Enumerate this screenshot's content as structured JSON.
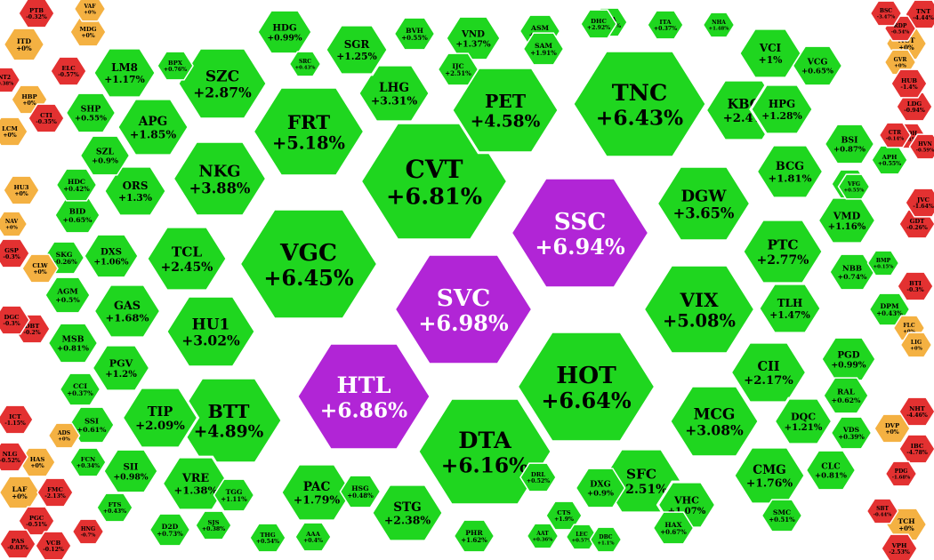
{
  "colors": {
    "up_strong": "#1fd61f",
    "up_medium": "#2ee02e",
    "ceiling": "#b125d6",
    "reference": "#f4b142",
    "down": "#e33131",
    "border": "#ffffff"
  },
  "tiles": [
    {
      "t": "SVC",
      "p": "+6.98%",
      "c": "ceiling"
    },
    {
      "t": "SSC",
      "p": "+6.94%",
      "c": "ceiling"
    },
    {
      "t": "HTL",
      "p": "+6.86%",
      "c": "ceiling"
    },
    {
      "t": "CVT",
      "p": "+6.81%",
      "c": "up"
    },
    {
      "t": "HOT",
      "p": "+6.64%",
      "c": "up"
    },
    {
      "t": "VGC",
      "p": "+6.45%",
      "c": "up"
    },
    {
      "t": "TNC",
      "p": "+6.43%",
      "c": "up"
    },
    {
      "t": "DTA",
      "p": "+6.16%",
      "c": "up"
    },
    {
      "t": "FRT",
      "p": "+5.18%",
      "c": "up"
    },
    {
      "t": "VIX",
      "p": "+5.08%",
      "c": "up"
    },
    {
      "t": "BTT",
      "p": "+4.89%",
      "c": "up"
    },
    {
      "t": "PET",
      "p": "+4.58%",
      "c": "up"
    },
    {
      "t": "NKG",
      "p": "+3.88%",
      "c": "up"
    },
    {
      "t": "DGW",
      "p": "+3.65%",
      "c": "up"
    },
    {
      "t": "LHG",
      "p": "+3.31%",
      "c": "up"
    },
    {
      "t": "MCG",
      "p": "+3.08%",
      "c": "up"
    },
    {
      "t": "HU1",
      "p": "+3.02%",
      "c": "up"
    },
    {
      "t": "SZC",
      "p": "+2.87%",
      "c": "up"
    },
    {
      "t": "PTC",
      "p": "+2.77%",
      "c": "up"
    },
    {
      "t": "SFC",
      "p": "+2.51%",
      "c": "up"
    },
    {
      "t": "TCL",
      "p": "+2.45%",
      "c": "up"
    },
    {
      "t": "KBC",
      "p": "+2.4%",
      "c": "up"
    },
    {
      "t": "STG",
      "p": "+2.38%",
      "c": "up"
    },
    {
      "t": "CII",
      "p": "+2.17%",
      "c": "up"
    },
    {
      "t": "TIP",
      "p": "+2.09%",
      "c": "up"
    },
    {
      "t": "APG",
      "p": "+1.85%",
      "c": "up"
    },
    {
      "t": "BCG",
      "p": "+1.81%",
      "c": "up"
    },
    {
      "t": "PAC",
      "p": "+1.79%",
      "c": "up"
    },
    {
      "t": "CMG",
      "p": "+1.76%",
      "c": "up"
    },
    {
      "t": "GAS",
      "p": "+1.68%",
      "c": "up"
    },
    {
      "t": "TLH",
      "p": "+1.47%",
      "c": "up"
    },
    {
      "t": "VRE",
      "p": "+1.38%",
      "c": "up"
    },
    {
      "t": "VND",
      "p": "+1.37%",
      "c": "up"
    },
    {
      "t": "ORS",
      "p": "+1.3%",
      "c": "up"
    },
    {
      "t": "HPG",
      "p": "+1.28%",
      "c": "up"
    },
    {
      "t": "SGR",
      "p": "+1.25%",
      "c": "up"
    },
    {
      "t": "PGV",
      "p": "+1.2%",
      "c": "up"
    },
    {
      "t": "DQC",
      "p": "+1.21%",
      "c": "up"
    },
    {
      "t": "LM8",
      "p": "+1.17%",
      "c": "up"
    },
    {
      "t": "VMD",
      "p": "+1.16%",
      "c": "up"
    },
    {
      "t": "VHC",
      "p": "+1.07%",
      "c": "up"
    },
    {
      "t": "DXS",
      "p": "+1.06%",
      "c": "up"
    },
    {
      "t": "VCI",
      "p": "+1%",
      "c": "up"
    },
    {
      "t": "HDG",
      "p": "+0.99%",
      "c": "up"
    },
    {
      "t": "PGD",
      "p": "+0.99%",
      "c": "up"
    },
    {
      "t": "SII",
      "p": "+0.98%",
      "c": "up"
    },
    {
      "t": "DXG",
      "p": "+0.9%",
      "c": "up"
    },
    {
      "t": "SZL",
      "p": "+0.9%",
      "c": "up"
    },
    {
      "t": "BSI",
      "p": "+0.87%",
      "c": "up"
    },
    {
      "t": "MSB",
      "p": "+0.81%",
      "c": "up"
    },
    {
      "t": "CLC",
      "p": "+0.81%",
      "c": "up"
    },
    {
      "t": "NBB",
      "p": "+0.74%",
      "c": "up"
    },
    {
      "t": "VCG",
      "p": "+0.65%",
      "c": "up"
    },
    {
      "t": "BID",
      "p": "+0.65%",
      "c": "up"
    },
    {
      "t": "RAL",
      "p": "+0.62%",
      "c": "up"
    },
    {
      "t": "SSI",
      "p": "+0.61%",
      "c": "up"
    },
    {
      "t": "SHP",
      "p": "+0.55%",
      "c": "up"
    },
    {
      "t": "AGM",
      "p": "+0.5%",
      "c": "up"
    },
    {
      "t": "HDC",
      "p": "+0.42%",
      "c": "up"
    },
    {
      "t": "DPM",
      "p": "+0.43%",
      "c": "up"
    },
    {
      "t": "VDS",
      "p": "+0.39%",
      "c": "up"
    },
    {
      "t": "CCI",
      "p": "+0.37%",
      "c": "up"
    },
    {
      "t": "SKG",
      "p": "+0.26%",
      "c": "up"
    },
    {
      "t": "GTA",
      "p": "+1.18%",
      "c": "up"
    },
    {
      "t": "BVH",
      "p": "+0.55%",
      "c": "up"
    },
    {
      "t": "ASM",
      "p": "+0.6%",
      "c": "up"
    },
    {
      "t": "IJC",
      "p": "+2.51%",
      "c": "up"
    },
    {
      "t": "SAM",
      "p": "+1.91%",
      "c": "up"
    },
    {
      "t": "ITA",
      "p": "+0.37%",
      "c": "up"
    },
    {
      "t": "SMC",
      "p": "+0.51%",
      "c": "up"
    },
    {
      "t": "HSG",
      "p": "+0.48%",
      "c": "up"
    },
    {
      "t": "TGG",
      "p": "+1.11%",
      "c": "up"
    },
    {
      "t": "HAX",
      "p": "+0.67%",
      "c": "up"
    },
    {
      "t": "D2D",
      "p": "+0.73%",
      "c": "up"
    },
    {
      "t": "PHR",
      "p": "+1.62%",
      "c": "up"
    },
    {
      "t": "AAA",
      "p": "+0.4%",
      "c": "up"
    },
    {
      "t": "CTS",
      "p": "+1.9%",
      "c": "up"
    },
    {
      "t": "DRL",
      "p": "+0.52%",
      "c": "up"
    },
    {
      "t": "FTS",
      "p": "+0.43%",
      "c": "up"
    },
    {
      "t": "SJS",
      "p": "+0.38%",
      "c": "up"
    },
    {
      "t": "DHC",
      "p": "+2.92%",
      "c": "up"
    },
    {
      "t": "NHA",
      "p": "+1.48%",
      "c": "up"
    },
    {
      "t": "BPX",
      "p": "+0.76%",
      "c": "up"
    },
    {
      "t": "VCF",
      "p": "+0.62%",
      "c": "up"
    },
    {
      "t": "AAT",
      "p": "+0.36%",
      "c": "up"
    },
    {
      "t": "LEC",
      "p": "+0.57%",
      "c": "up"
    },
    {
      "t": "DBC",
      "p": "+1.1%",
      "c": "up"
    },
    {
      "t": "BMP",
      "p": "+0.15%",
      "c": "up"
    },
    {
      "t": "SRC",
      "p": "+0.43%",
      "c": "up"
    },
    {
      "t": "VFG",
      "p": "+0.55%",
      "c": "up"
    },
    {
      "t": "THG",
      "p": "+0.54%",
      "c": "up"
    },
    {
      "t": "APH",
      "p": "+0.55%",
      "c": "up"
    },
    {
      "t": "FCN",
      "p": "+0.34%",
      "c": "up"
    },
    {
      "t": "ITD",
      "p": "+0%",
      "c": "ref"
    },
    {
      "t": "MDG",
      "p": "+0%",
      "c": "ref"
    },
    {
      "t": "HBP",
      "p": "+0%",
      "c": "ref"
    },
    {
      "t": "HU3",
      "p": "+0%",
      "c": "ref"
    },
    {
      "t": "NAV",
      "p": "+0%",
      "c": "ref"
    },
    {
      "t": "CLW",
      "p": "+0%",
      "c": "ref"
    },
    {
      "t": "LAF",
      "p": "+0%",
      "c": "ref"
    },
    {
      "t": "HAS",
      "p": "+0%",
      "c": "ref"
    },
    {
      "t": "ADS",
      "p": "+0%",
      "c": "ref"
    },
    {
      "t": "PTB",
      "p": "-0.32%",
      "c": "down"
    },
    {
      "t": "VAF",
      "p": "+0%",
      "c": "ref"
    },
    {
      "t": "NCT",
      "p": "+0%",
      "c": "ref"
    },
    {
      "t": "GVR",
      "p": "+0%",
      "c": "ref"
    },
    {
      "t": "TCH",
      "p": "+0%",
      "c": "ref"
    },
    {
      "t": "DVP",
      "p": "+0%",
      "c": "ref"
    },
    {
      "t": "FLC",
      "p": "+0%",
      "c": "ref"
    },
    {
      "t": "LIG",
      "p": "+0%",
      "c": "ref"
    },
    {
      "t": "ELC",
      "p": "-0.57%",
      "c": "down"
    },
    {
      "t": "CTI",
      "p": "-0.35%",
      "c": "down"
    },
    {
      "t": "LCM",
      "p": "+0%",
      "c": "ref"
    },
    {
      "t": "DBT",
      "p": "-0.2%",
      "c": "down"
    },
    {
      "t": "FMC",
      "p": "-2.13%",
      "c": "down"
    },
    {
      "t": "PGC",
      "p": "-0.51%",
      "c": "down"
    },
    {
      "t": "VCB",
      "p": "-0.12%",
      "c": "down"
    },
    {
      "t": "KDH",
      "p": "-0.35%",
      "c": "down"
    },
    {
      "t": "LDG",
      "p": "-0.94%",
      "c": "down"
    },
    {
      "t": "HUB",
      "p": "-1.4%",
      "c": "down"
    },
    {
      "t": "TNT",
      "p": "-4.44%",
      "c": "down"
    },
    {
      "t": "RDP",
      "p": "-0.54%",
      "c": "down"
    },
    {
      "t": "BTI",
      "p": "-0.3%",
      "c": "down"
    },
    {
      "t": "GDT",
      "p": "-0.26%",
      "c": "down"
    },
    {
      "t": "JVC",
      "p": "-1.64%",
      "c": "down"
    },
    {
      "t": "NHT",
      "p": "-4.46%",
      "c": "down"
    },
    {
      "t": "VPH",
      "p": "-2.53%",
      "c": "down"
    },
    {
      "t": "GSP",
      "p": "-0.3%",
      "c": "down"
    },
    {
      "t": "DGC",
      "p": "-0.3%",
      "c": "down"
    },
    {
      "t": "ICT",
      "p": "-1.15%",
      "c": "down"
    },
    {
      "t": "NLG",
      "p": "-0.52%",
      "c": "down"
    },
    {
      "t": "PAS",
      "p": "-0.83%",
      "c": "down"
    },
    {
      "t": "BSC",
      "p": "-3.47%",
      "c": "down"
    },
    {
      "t": "HNG",
      "p": "-0.7%",
      "c": "down"
    },
    {
      "t": "IBC",
      "p": "-4.78%",
      "c": "down"
    },
    {
      "t": "PDG",
      "p": "-1.68%",
      "c": "down"
    },
    {
      "t": "SBT",
      "p": "-0.44%",
      "c": "down"
    },
    {
      "t": "CTR",
      "p": "-0.14%",
      "c": "down"
    },
    {
      "t": "HVN",
      "p": "-0.59%",
      "c": "down"
    },
    {
      "t": "NT2",
      "p": "-0.38%",
      "c": "down"
    }
  ]
}
